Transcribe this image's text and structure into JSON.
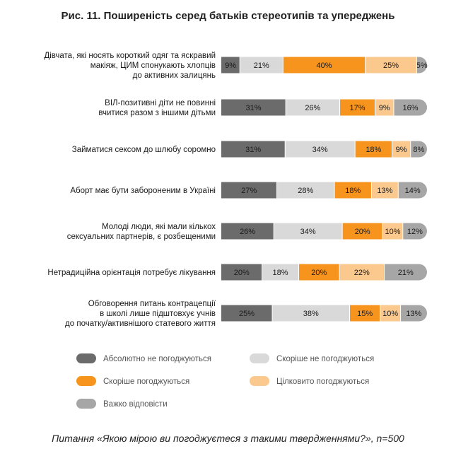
{
  "title": "Рис. 11. Поширеність серед батьків стереотипів та упереджень",
  "footer": "Питання «Якою мірою ви погоджуєтеся з такими твердженнями?», n=500",
  "chart_data": {
    "type": "bar",
    "orientation": "horizontal",
    "stacked": true,
    "categories": [
      [
        "Дівчата, які носять короткий одяг та яскравий",
        "макіяж, ЦИМ спонукають хлопців",
        "до активних залицянь"
      ],
      [
        "ВІЛ-позитивні діти не повинні",
        "вчитися разом з іншими дітьми"
      ],
      [
        "Займатися сексом до шлюбу соромно"
      ],
      [
        "Аборт має бути забороненим в Україні"
      ],
      [
        "Молоді люди, які мали кількох",
        "сексуальних партнерів, є розбещеними"
      ],
      [
        "Нетрадиційна орієнтація потребує лікування"
      ],
      [
        "Обговорення питань контрацепції",
        "в школі лише підштовхує учнів",
        "до початку/активнішого статевого життя"
      ]
    ],
    "series": [
      {
        "name": "Абсолютно не погоджуються",
        "color": "#6b6b6b",
        "values": [
          9,
          31,
          31,
          27,
          26,
          20,
          25
        ]
      },
      {
        "name": "Скоріше не погоджуються",
        "color": "#d9d9d9",
        "values": [
          21,
          26,
          34,
          28,
          34,
          18,
          38
        ]
      },
      {
        "name": "Скоріше погоджуються",
        "color": "#f7941d",
        "values": [
          40,
          17,
          18,
          18,
          20,
          20,
          15
        ]
      },
      {
        "name": "Цілковито погоджуються",
        "color": "#fbc98e",
        "values": [
          25,
          9,
          9,
          13,
          10,
          22,
          10
        ]
      },
      {
        "name": "Важко відповісти",
        "color": "#a6a6a6",
        "values": [
          5,
          16,
          8,
          14,
          12,
          21,
          13
        ]
      }
    ],
    "value_suffix": "%",
    "legend_position": "bottom",
    "grid": false
  }
}
